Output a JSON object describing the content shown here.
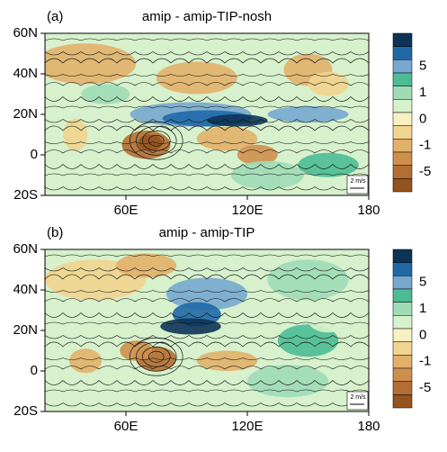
{
  "xlim": [
    20,
    180
  ],
  "ylim": [
    -20,
    60
  ],
  "xticks": [
    {
      "value": 60,
      "label": "60E"
    },
    {
      "value": 120,
      "label": "120E"
    },
    180
  ],
  "yticks": [
    {
      "value": 60,
      "label": "60N"
    },
    {
      "value": 40,
      "label": "40N"
    },
    {
      "value": 20,
      "label": "20N"
    },
    0,
    {
      "value": -20,
      "label": "20S"
    }
  ],
  "colorbar": {
    "colors": [
      "#0d3456",
      "#1f69a8",
      "#77a8cf",
      "#4dbc95",
      "#9fdcb6",
      "#d6f1cc",
      "#f7f1c2",
      "#f1d48e",
      "#e2b06a",
      "#cf8f4c",
      "#b46e33",
      "#94531f"
    ],
    "labels": [
      5,
      1,
      0,
      -1,
      -5
    ]
  },
  "panels": [
    {
      "label": "(a)",
      "title": "amip - amip-TIP-nosh",
      "ref_vector": "2 m/s"
    },
    {
      "label": "(b)",
      "title": "amip - amip-TIP",
      "ref_vector": "2 m/s"
    }
  ]
}
